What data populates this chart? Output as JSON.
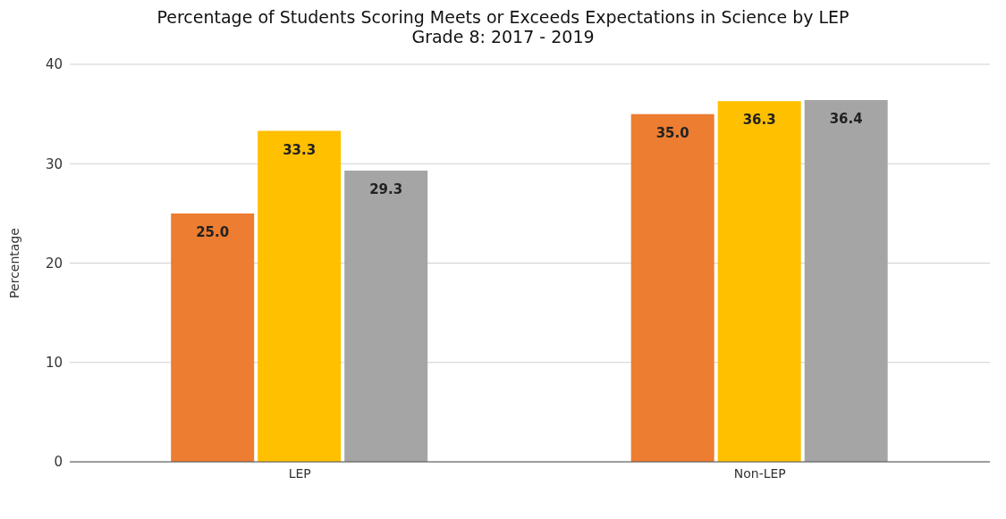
{
  "chart_data": {
    "type": "bar",
    "title": "Percentage of Students Scoring Meets or Exceeds Expectations in Science by LEP",
    "subtitle": "Grade 8: 2017 - 2019",
    "ylabel": "Percentage",
    "categories": [
      "LEP",
      "Non-LEP"
    ],
    "series": [
      {
        "color": "#ed7d31",
        "values": [
          25.0,
          35.0
        ],
        "value_labels": [
          "25.0",
          "35.0"
        ]
      },
      {
        "color": "#ffc000",
        "values": [
          33.3,
          36.3
        ],
        "value_labels": [
          "33.3",
          "36.3"
        ]
      },
      {
        "color": "#a5a5a5",
        "values": [
          29.3,
          36.4
        ],
        "value_labels": [
          "29.3",
          "36.4"
        ]
      }
    ],
    "ylim": [
      0,
      40
    ],
    "yticks": [
      0,
      10,
      20,
      30,
      40
    ],
    "grid": "y"
  }
}
